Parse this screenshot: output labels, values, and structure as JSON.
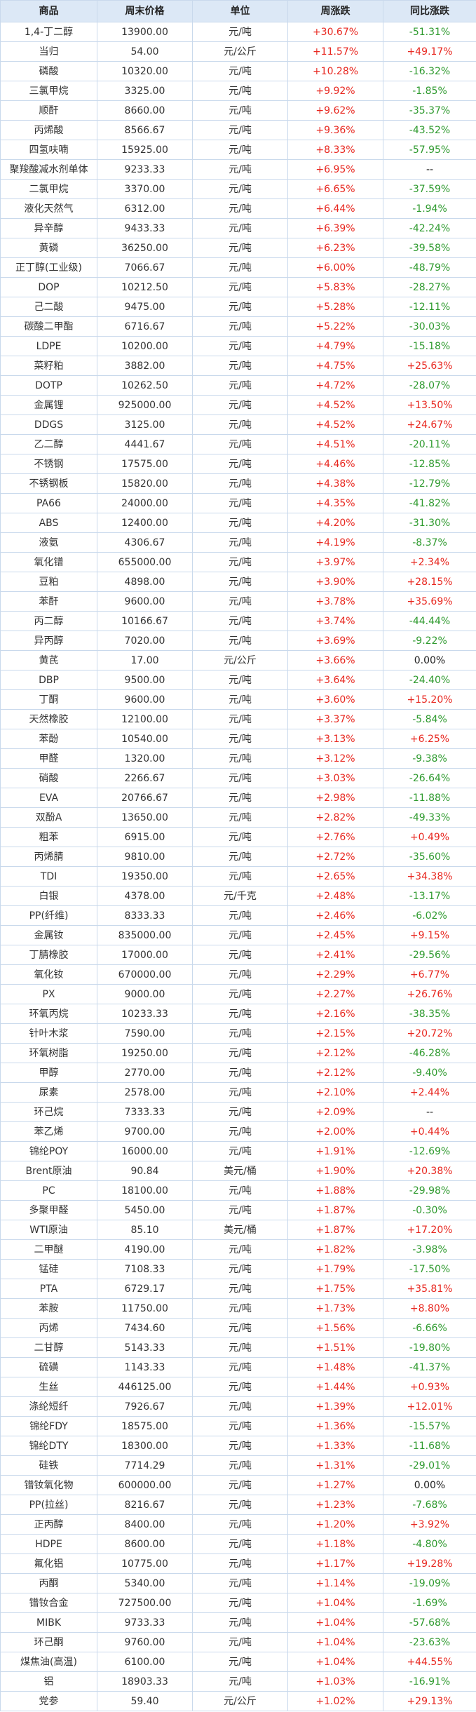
{
  "colors": {
    "up": "#e8271f",
    "down": "#2e9a2e",
    "header_bg": "#dce8f6",
    "border": "#c9d9ec"
  },
  "headers": [
    "商品",
    "周末价格",
    "单位",
    "周涨跌",
    "同比涨跌"
  ],
  "rows": [
    [
      "1,4-丁二醇",
      "13900.00",
      "元/吨",
      "+30.67%",
      "-51.31%"
    ],
    [
      "当归",
      "54.00",
      "元/公斤",
      "+11.57%",
      "+49.17%"
    ],
    [
      "磷酸",
      "10320.00",
      "元/吨",
      "+10.28%",
      "-16.32%"
    ],
    [
      "三氯甲烷",
      "3325.00",
      "元/吨",
      "+9.92%",
      "-1.85%"
    ],
    [
      "顺酐",
      "8660.00",
      "元/吨",
      "+9.62%",
      "-35.37%"
    ],
    [
      "丙烯酸",
      "8566.67",
      "元/吨",
      "+9.36%",
      "-43.52%"
    ],
    [
      "四氢呋喃",
      "15925.00",
      "元/吨",
      "+8.33%",
      "-57.95%"
    ],
    [
      "聚羧酸减水剂单体",
      "9233.33",
      "元/吨",
      "+6.95%",
      "--"
    ],
    [
      "二氯甲烷",
      "3370.00",
      "元/吨",
      "+6.65%",
      "-37.59%"
    ],
    [
      "液化天然气",
      "6312.00",
      "元/吨",
      "+6.44%",
      "-1.94%"
    ],
    [
      "异辛醇",
      "9433.33",
      "元/吨",
      "+6.39%",
      "-42.24%"
    ],
    [
      "黄磷",
      "36250.00",
      "元/吨",
      "+6.23%",
      "-39.58%"
    ],
    [
      "正丁醇(工业级)",
      "7066.67",
      "元/吨",
      "+6.00%",
      "-48.79%"
    ],
    [
      "DOP",
      "10212.50",
      "元/吨",
      "+5.83%",
      "-28.27%"
    ],
    [
      "己二酸",
      "9475.00",
      "元/吨",
      "+5.28%",
      "-12.11%"
    ],
    [
      "碳酸二甲酯",
      "6716.67",
      "元/吨",
      "+5.22%",
      "-30.03%"
    ],
    [
      "LDPE",
      "10200.00",
      "元/吨",
      "+4.79%",
      "-15.18%"
    ],
    [
      "菜籽粕",
      "3882.00",
      "元/吨",
      "+4.75%",
      "+25.63%"
    ],
    [
      "DOTP",
      "10262.50",
      "元/吨",
      "+4.72%",
      "-28.07%"
    ],
    [
      "金属锂",
      "925000.00",
      "元/吨",
      "+4.52%",
      "+13.50%"
    ],
    [
      "DDGS",
      "3125.00",
      "元/吨",
      "+4.52%",
      "+24.67%"
    ],
    [
      "乙二醇",
      "4441.67",
      "元/吨",
      "+4.51%",
      "-20.11%"
    ],
    [
      "不锈钢",
      "17575.00",
      "元/吨",
      "+4.46%",
      "-12.85%"
    ],
    [
      "不锈钢板",
      "15820.00",
      "元/吨",
      "+4.38%",
      "-12.79%"
    ],
    [
      "PA66",
      "24000.00",
      "元/吨",
      "+4.35%",
      "-41.82%"
    ],
    [
      "ABS",
      "12400.00",
      "元/吨",
      "+4.20%",
      "-31.30%"
    ],
    [
      "液氨",
      "4306.67",
      "元/吨",
      "+4.19%",
      "-8.37%"
    ],
    [
      "氧化镨",
      "655000.00",
      "元/吨",
      "+3.97%",
      "+2.34%"
    ],
    [
      "豆粕",
      "4898.00",
      "元/吨",
      "+3.90%",
      "+28.15%"
    ],
    [
      "苯酐",
      "9600.00",
      "元/吨",
      "+3.78%",
      "+35.69%"
    ],
    [
      "丙二醇",
      "10166.67",
      "元/吨",
      "+3.74%",
      "-44.44%"
    ],
    [
      "异丙醇",
      "7020.00",
      "元/吨",
      "+3.69%",
      "-9.22%"
    ],
    [
      "黄芪",
      "17.00",
      "元/公斤",
      "+3.66%",
      "0.00%"
    ],
    [
      "DBP",
      "9500.00",
      "元/吨",
      "+3.64%",
      "-24.40%"
    ],
    [
      "丁酮",
      "9600.00",
      "元/吨",
      "+3.60%",
      "+15.20%"
    ],
    [
      "天然橡胶",
      "12100.00",
      "元/吨",
      "+3.37%",
      "-5.84%"
    ],
    [
      "苯酚",
      "10540.00",
      "元/吨",
      "+3.13%",
      "+6.25%"
    ],
    [
      "甲醛",
      "1320.00",
      "元/吨",
      "+3.12%",
      "-9.38%"
    ],
    [
      "硝酸",
      "2266.67",
      "元/吨",
      "+3.03%",
      "-26.64%"
    ],
    [
      "EVA",
      "20766.67",
      "元/吨",
      "+2.98%",
      "-11.88%"
    ],
    [
      "双酚A",
      "13650.00",
      "元/吨",
      "+2.82%",
      "-49.33%"
    ],
    [
      "粗苯",
      "6915.00",
      "元/吨",
      "+2.76%",
      "+0.49%"
    ],
    [
      "丙烯腈",
      "9810.00",
      "元/吨",
      "+2.72%",
      "-35.60%"
    ],
    [
      "TDI",
      "19350.00",
      "元/吨",
      "+2.65%",
      "+34.38%"
    ],
    [
      "白银",
      "4378.00",
      "元/千克",
      "+2.48%",
      "-13.17%"
    ],
    [
      "PP(纤维)",
      "8333.33",
      "元/吨",
      "+2.46%",
      "-6.02%"
    ],
    [
      "金属钕",
      "835000.00",
      "元/吨",
      "+2.45%",
      "+9.15%"
    ],
    [
      "丁腈橡胶",
      "17000.00",
      "元/吨",
      "+2.41%",
      "-29.56%"
    ],
    [
      "氧化钕",
      "670000.00",
      "元/吨",
      "+2.29%",
      "+6.77%"
    ],
    [
      "PX",
      "9000.00",
      "元/吨",
      "+2.27%",
      "+26.76%"
    ],
    [
      "环氧丙烷",
      "10233.33",
      "元/吨",
      "+2.16%",
      "-38.35%"
    ],
    [
      "针叶木浆",
      "7590.00",
      "元/吨",
      "+2.15%",
      "+20.72%"
    ],
    [
      "环氧树脂",
      "19250.00",
      "元/吨",
      "+2.12%",
      "-46.28%"
    ],
    [
      "甲醇",
      "2770.00",
      "元/吨",
      "+2.12%",
      "-9.40%"
    ],
    [
      "尿素",
      "2578.00",
      "元/吨",
      "+2.10%",
      "+2.44%"
    ],
    [
      "环己烷",
      "7333.33",
      "元/吨",
      "+2.09%",
      "--"
    ],
    [
      "苯乙烯",
      "9700.00",
      "元/吨",
      "+2.00%",
      "+0.44%"
    ],
    [
      "锦纶POY",
      "16000.00",
      "元/吨",
      "+1.91%",
      "-12.69%"
    ],
    [
      "Brent原油",
      "90.84",
      "美元/桶",
      "+1.90%",
      "+20.38%"
    ],
    [
      "PC",
      "18100.00",
      "元/吨",
      "+1.88%",
      "-29.98%"
    ],
    [
      "多聚甲醛",
      "5450.00",
      "元/吨",
      "+1.87%",
      "-0.30%"
    ],
    [
      "WTI原油",
      "85.10",
      "美元/桶",
      "+1.87%",
      "+17.20%"
    ],
    [
      "二甲醚",
      "4190.00",
      "元/吨",
      "+1.82%",
      "-3.98%"
    ],
    [
      "锰硅",
      "7108.33",
      "元/吨",
      "+1.79%",
      "-17.50%"
    ],
    [
      "PTA",
      "6729.17",
      "元/吨",
      "+1.75%",
      "+35.81%"
    ],
    [
      "苯胺",
      "11750.00",
      "元/吨",
      "+1.73%",
      "+8.80%"
    ],
    [
      "丙烯",
      "7434.60",
      "元/吨",
      "+1.56%",
      "-6.66%"
    ],
    [
      "二甘醇",
      "5143.33",
      "元/吨",
      "+1.51%",
      "-19.80%"
    ],
    [
      "硫磺",
      "1143.33",
      "元/吨",
      "+1.48%",
      "-41.37%"
    ],
    [
      "生丝",
      "446125.00",
      "元/吨",
      "+1.44%",
      "+0.93%"
    ],
    [
      "涤纶短纤",
      "7926.67",
      "元/吨",
      "+1.39%",
      "+12.01%"
    ],
    [
      "锦纶FDY",
      "18575.00",
      "元/吨",
      "+1.36%",
      "-15.57%"
    ],
    [
      "锦纶DTY",
      "18300.00",
      "元/吨",
      "+1.33%",
      "-11.68%"
    ],
    [
      "硅铁",
      "7714.29",
      "元/吨",
      "+1.31%",
      "-29.01%"
    ],
    [
      "镨钕氧化物",
      "600000.00",
      "元/吨",
      "+1.27%",
      "0.00%"
    ],
    [
      "PP(拉丝)",
      "8216.67",
      "元/吨",
      "+1.23%",
      "-7.68%"
    ],
    [
      "正丙醇",
      "8400.00",
      "元/吨",
      "+1.20%",
      "+3.92%"
    ],
    [
      "HDPE",
      "8600.00",
      "元/吨",
      "+1.18%",
      "-4.80%"
    ],
    [
      "氟化铝",
      "10775.00",
      "元/吨",
      "+1.17%",
      "+19.28%"
    ],
    [
      "丙酮",
      "5340.00",
      "元/吨",
      "+1.14%",
      "-19.09%"
    ],
    [
      "镨钕合金",
      "727500.00",
      "元/吨",
      "+1.04%",
      "-1.69%"
    ],
    [
      "MIBK",
      "9733.33",
      "元/吨",
      "+1.04%",
      "-57.68%"
    ],
    [
      "环己酮",
      "9760.00",
      "元/吨",
      "+1.04%",
      "-23.63%"
    ],
    [
      "煤焦油(高温)",
      "6100.00",
      "元/吨",
      "+1.04%",
      "+44.55%"
    ],
    [
      "铝",
      "18903.33",
      "元/吨",
      "+1.03%",
      "-16.91%"
    ],
    [
      "党参",
      "59.40",
      "元/公斤",
      "+1.02%",
      "+29.13%"
    ]
  ]
}
